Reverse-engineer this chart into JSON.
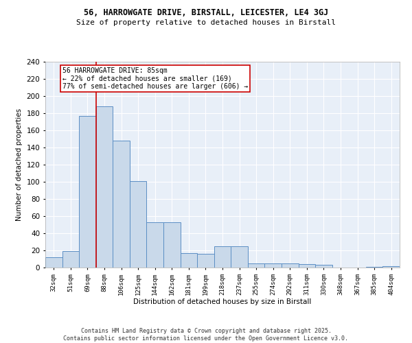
{
  "title1": "56, HARROWGATE DRIVE, BIRSTALL, LEICESTER, LE4 3GJ",
  "title2": "Size of property relative to detached houses in Birstall",
  "xlabel": "Distribution of detached houses by size in Birstall",
  "ylabel": "Number of detached properties",
  "bar_labels": [
    "32sqm",
    "51sqm",
    "69sqm",
    "88sqm",
    "106sqm",
    "125sqm",
    "144sqm",
    "162sqm",
    "181sqm",
    "199sqm",
    "218sqm",
    "237sqm",
    "255sqm",
    "274sqm",
    "292sqm",
    "311sqm",
    "330sqm",
    "348sqm",
    "367sqm",
    "385sqm",
    "404sqm"
  ],
  "bar_values": [
    12,
    19,
    177,
    188,
    148,
    101,
    53,
    53,
    17,
    16,
    25,
    25,
    5,
    5,
    5,
    4,
    3,
    0,
    0,
    1,
    2
  ],
  "bar_color": "#c9d9ea",
  "bar_edge_color": "#5b8ec4",
  "vline_x": 2.5,
  "vline_color": "#cc0000",
  "annotation_text": "56 HARROWGATE DRIVE: 85sqm\n← 22% of detached houses are smaller (169)\n77% of semi-detached houses are larger (606) →",
  "annotation_box_color": "#ffffff",
  "annotation_box_edge": "#cc0000",
  "ylim": [
    0,
    240
  ],
  "yticks": [
    0,
    20,
    40,
    60,
    80,
    100,
    120,
    140,
    160,
    180,
    200,
    220,
    240
  ],
  "bg_color": "#e8eff8",
  "footer": "Contains HM Land Registry data © Crown copyright and database right 2025.\nContains public sector information licensed under the Open Government Licence v3.0."
}
